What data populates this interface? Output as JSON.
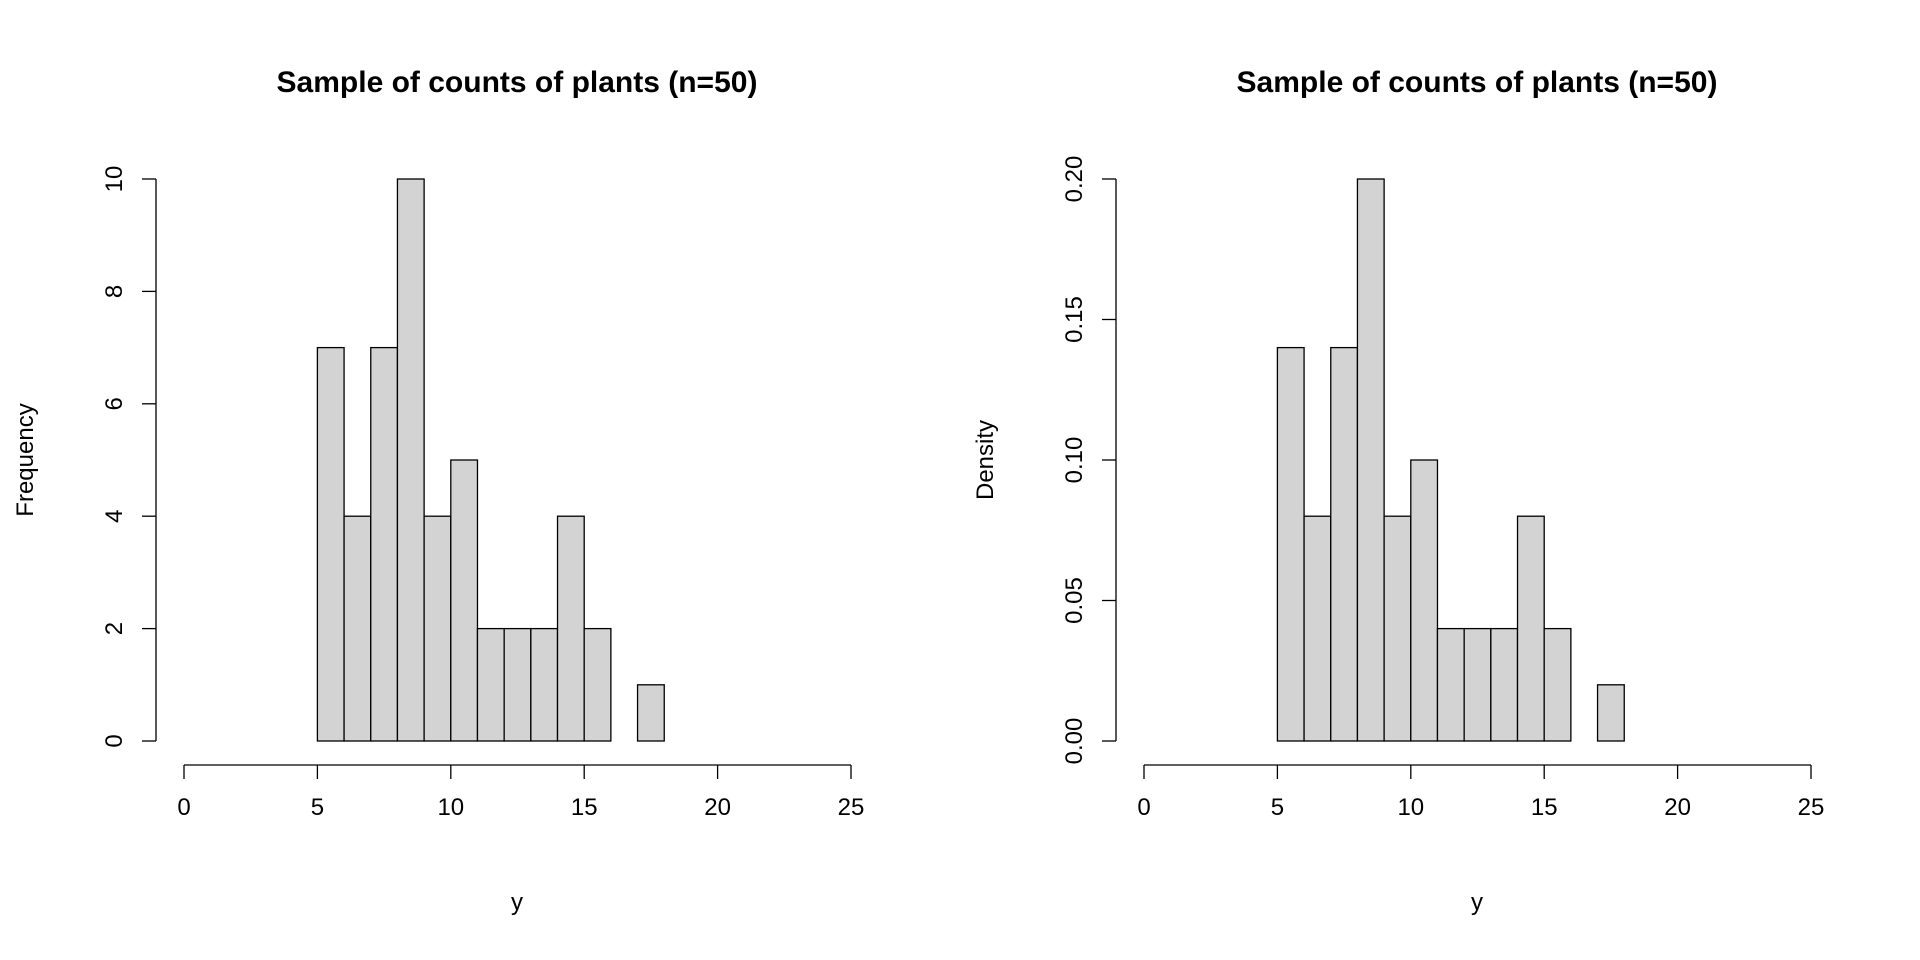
{
  "chart_data": [
    {
      "type": "bar",
      "title": "Sample of counts of plants (n=50)",
      "xlabel": "y",
      "ylabel": "Frequency",
      "bin_edges": [
        5,
        6,
        7,
        8,
        9,
        10,
        11,
        12,
        13,
        14,
        15,
        16,
        17,
        18
      ],
      "values": [
        7,
        4,
        7,
        10,
        4,
        5,
        2,
        2,
        2,
        4,
        2,
        0,
        1
      ],
      "xlim": [
        0,
        25
      ],
      "ylim": [
        0,
        10
      ],
      "xticks": [
        "0",
        "5",
        "10",
        "15",
        "20",
        "25"
      ],
      "yticks": [
        "0",
        "2",
        "4",
        "6",
        "8",
        "10"
      ],
      "bar_color": "#d3d3d3"
    },
    {
      "type": "bar",
      "title": "Sample of counts of plants (n=50)",
      "xlabel": "y",
      "ylabel": "Density",
      "bin_edges": [
        5,
        6,
        7,
        8,
        9,
        10,
        11,
        12,
        13,
        14,
        15,
        16,
        17,
        18
      ],
      "values": [
        0.14,
        0.08,
        0.14,
        0.2,
        0.08,
        0.1,
        0.04,
        0.04,
        0.04,
        0.08,
        0.04,
        0.0,
        0.02
      ],
      "xlim": [
        0,
        25
      ],
      "ylim": [
        0,
        0.2
      ],
      "xticks": [
        "0",
        "5",
        "10",
        "15",
        "20",
        "25"
      ],
      "yticks": [
        "0.00",
        "0.05",
        "0.10",
        "0.15",
        "0.20"
      ],
      "bar_color": "#d3d3d3"
    }
  ]
}
